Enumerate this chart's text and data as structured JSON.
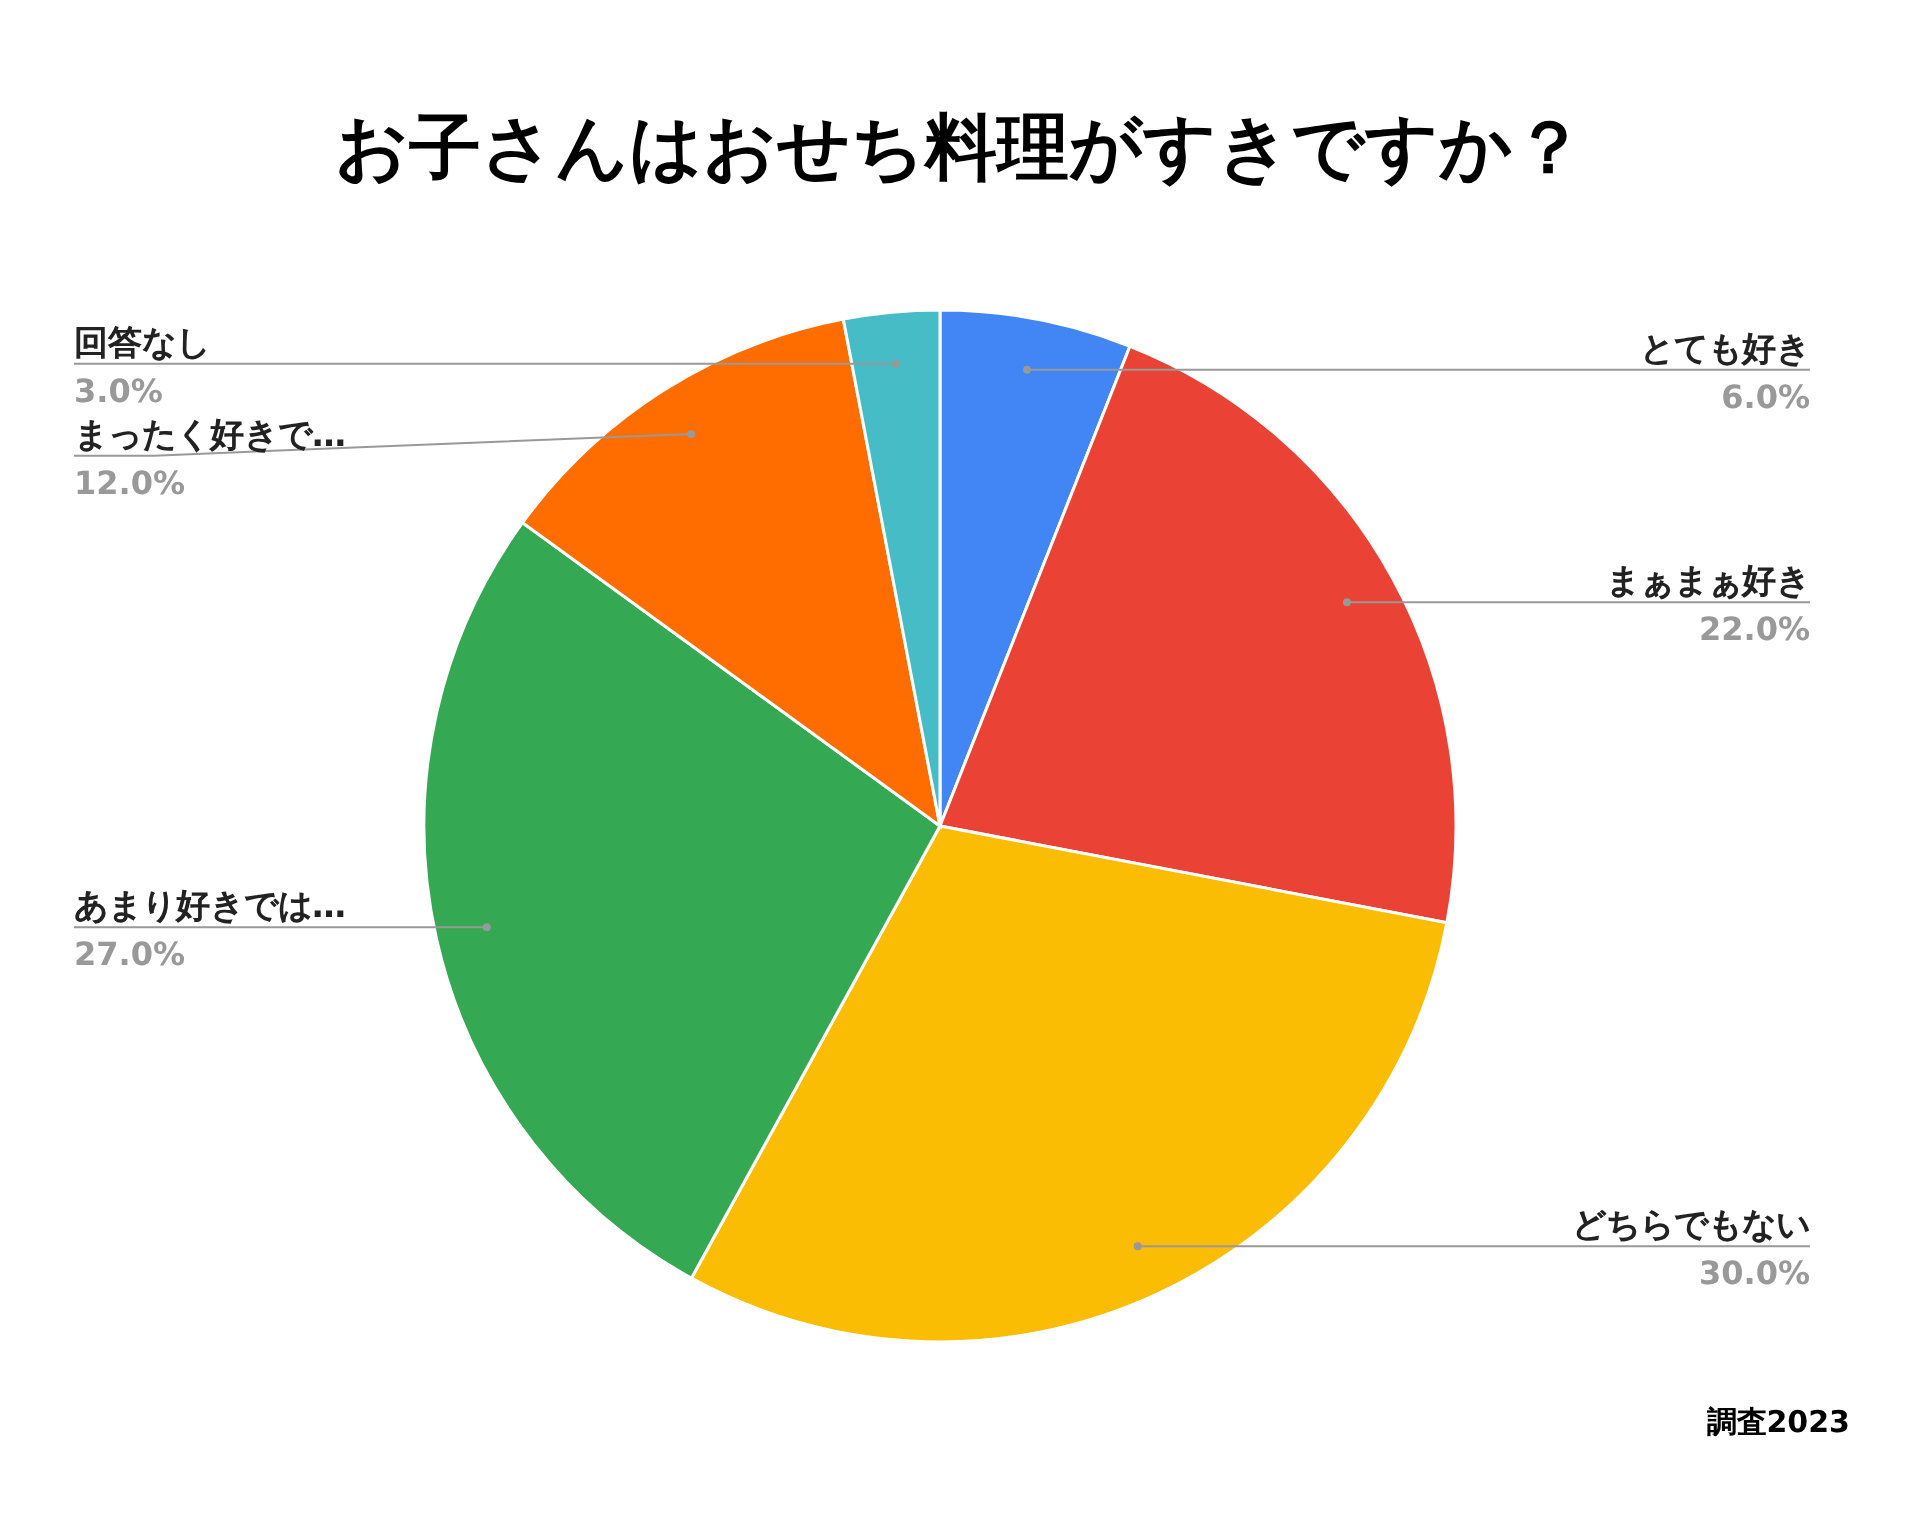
{
  "chart_data": {
    "type": "pie",
    "title": "お子さんはおせち料理がすきですか？",
    "categories": [
      "とても好き",
      "まぁまぁ好き",
      "どちらでもない",
      "あまり好きでは…",
      "まったく好きで…",
      "回答なし"
    ],
    "values": [
      6,
      22,
      30,
      27,
      12,
      3
    ],
    "value_labels": [
      "6.0%",
      "22.0%",
      "30.0%",
      "27.0%",
      "12.0%",
      "3.0%"
    ],
    "colors": [
      "#4285f4",
      "#ea4335",
      "#fbbc04",
      "#34a853",
      "#ff6d01",
      "#46bdc6"
    ],
    "annotations": [
      "調査2023"
    ]
  }
}
